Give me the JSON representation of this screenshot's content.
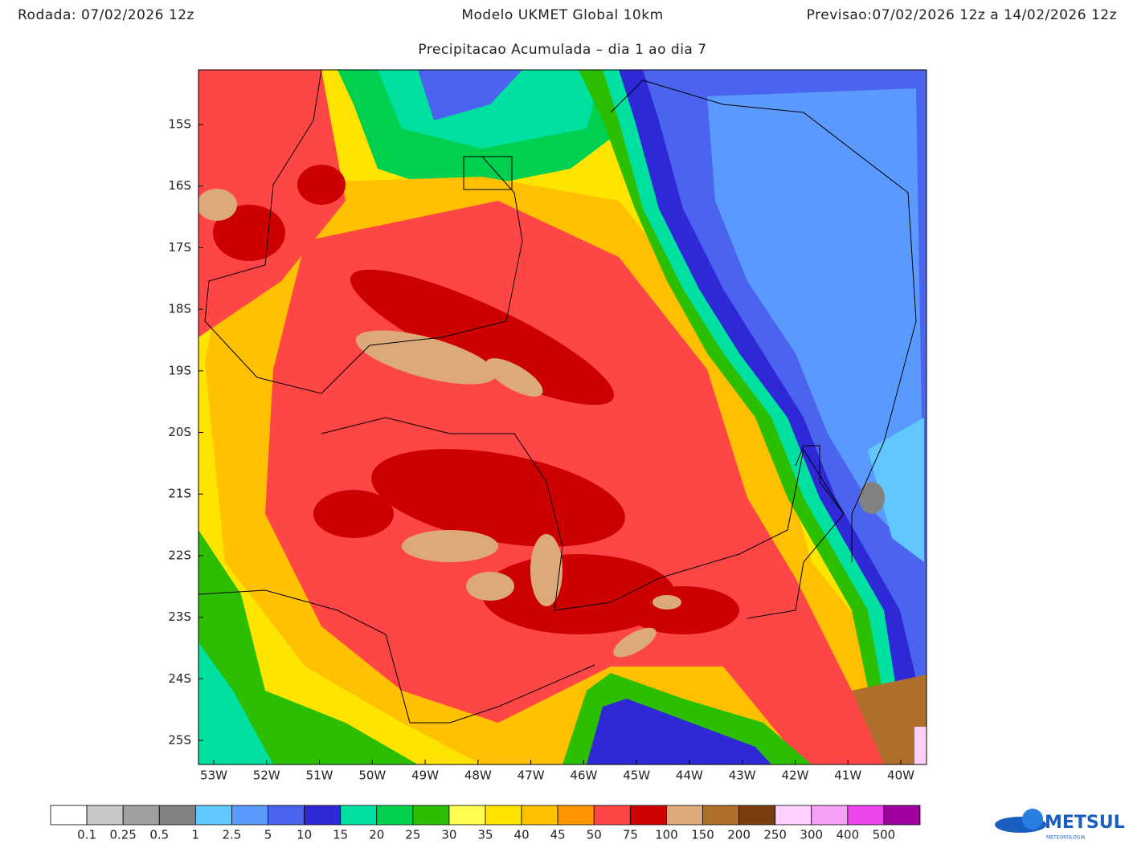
{
  "header": {
    "run": "Rodada: 07/02/2026 12z",
    "model": "Modelo UKMET Global 10km",
    "forecast": "Previsao:07/02/2026 12z a 14/02/2026 12z",
    "subtitle": "Precipitacao Acumulada – dia 1 ao dia 7"
  },
  "map": {
    "lat_labels": [
      "15S",
      "16S",
      "17S",
      "18S",
      "19S",
      "20S",
      "21S",
      "22S",
      "23S",
      "24S",
      "25S"
    ],
    "lon_labels": [
      "53W",
      "52W",
      "51W",
      "50W",
      "49W",
      "48W",
      "47W",
      "46W",
      "45W",
      "44W",
      "43W",
      "42W",
      "41W",
      "40W"
    ]
  },
  "colorbar": {
    "colors": [
      "#ffffff",
      "#c8c8c8",
      "#a0a0a0",
      "#828282",
      "#60c8ff",
      "#5a9aff",
      "#4a64f0",
      "#2e28d6",
      "#00e0a0",
      "#00d050",
      "#2cbe00",
      "#ffff50",
      "#ffe400",
      "#ffc000",
      "#ff9600",
      "#ff4646",
      "#cc0000",
      "#dcaa7a",
      "#b06e2c",
      "#7a3e10",
      "#ffd0ff",
      "#f6a0f6",
      "#ee44ee",
      "#a000a0"
    ],
    "labels": [
      "0.1",
      "0.25",
      "0.5",
      "1",
      "2.5",
      "5",
      "10",
      "15",
      "20",
      "25",
      "30",
      "35",
      "40",
      "45",
      "50",
      "75",
      "100",
      "150",
      "200",
      "250",
      "300",
      "400",
      "500"
    ]
  },
  "logo": {
    "name": "METSUL",
    "tagline": "METEOROLOGIA"
  }
}
